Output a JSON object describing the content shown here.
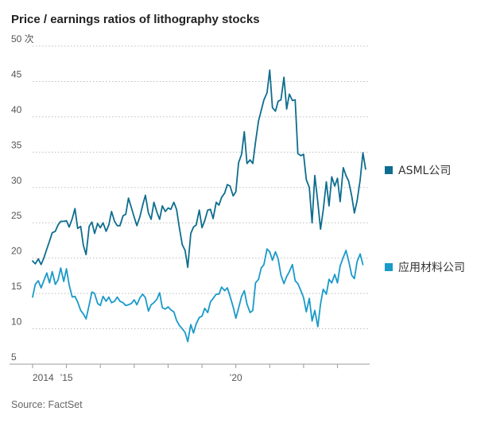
{
  "title": "Price / earnings ratios of lithography stocks",
  "source": "Source: FactSet",
  "chart_data": {
    "type": "line",
    "title": "Price / earnings ratios of lithography stocks",
    "y_unit": "次",
    "ylim": [
      5,
      50
    ],
    "y_ticks": [
      5,
      10,
      15,
      20,
      25,
      30,
      35,
      40,
      45,
      50
    ],
    "x_range": [
      2014.0,
      2023.95
    ],
    "x_ticks": [
      {
        "x": 2014,
        "label": "2014"
      },
      {
        "x": 2015,
        "label": "’15"
      },
      {
        "x": 2016,
        "label": ""
      },
      {
        "x": 2017,
        "label": ""
      },
      {
        "x": 2018,
        "label": ""
      },
      {
        "x": 2019,
        "label": ""
      },
      {
        "x": 2020,
        "label": "’20"
      },
      {
        "x": 2021,
        "label": ""
      },
      {
        "x": 2022,
        "label": ""
      },
      {
        "x": 2023,
        "label": ""
      }
    ],
    "grid": "horizontal dotted",
    "legend": "right, beside line ends",
    "series": [
      {
        "name": "ASML公司",
        "color": "#0e6d8e",
        "points": [
          [
            2014.0,
            19.6
          ],
          [
            2014.08,
            19.2
          ],
          [
            2014.17,
            19.9
          ],
          [
            2014.25,
            19.1
          ],
          [
            2014.33,
            20.0
          ],
          [
            2014.42,
            21.3
          ],
          [
            2014.5,
            22.4
          ],
          [
            2014.58,
            23.6
          ],
          [
            2014.67,
            23.8
          ],
          [
            2014.75,
            24.7
          ],
          [
            2014.83,
            25.2
          ],
          [
            2014.92,
            25.2
          ],
          [
            2015.0,
            25.3
          ],
          [
            2015.08,
            24.4
          ],
          [
            2015.17,
            25.6
          ],
          [
            2015.25,
            27.0
          ],
          [
            2015.33,
            24.2
          ],
          [
            2015.42,
            24.5
          ],
          [
            2015.5,
            21.8
          ],
          [
            2015.58,
            20.5
          ],
          [
            2015.67,
            24.5
          ],
          [
            2015.75,
            25.1
          ],
          [
            2015.83,
            23.5
          ],
          [
            2015.92,
            24.9
          ],
          [
            2016.0,
            24.3
          ],
          [
            2016.08,
            25.0
          ],
          [
            2016.17,
            23.8
          ],
          [
            2016.25,
            24.7
          ],
          [
            2016.33,
            26.6
          ],
          [
            2016.42,
            25.2
          ],
          [
            2016.5,
            24.6
          ],
          [
            2016.58,
            24.6
          ],
          [
            2016.67,
            26.0
          ],
          [
            2016.75,
            26.2
          ],
          [
            2016.83,
            28.5
          ],
          [
            2016.92,
            27.1
          ],
          [
            2017.0,
            25.8
          ],
          [
            2017.08,
            24.6
          ],
          [
            2017.17,
            25.9
          ],
          [
            2017.25,
            27.5
          ],
          [
            2017.33,
            28.9
          ],
          [
            2017.42,
            26.4
          ],
          [
            2017.5,
            25.5
          ],
          [
            2017.58,
            27.9
          ],
          [
            2017.67,
            26.5
          ],
          [
            2017.75,
            25.5
          ],
          [
            2017.83,
            27.4
          ],
          [
            2017.92,
            26.6
          ],
          [
            2018.0,
            27.1
          ],
          [
            2018.08,
            26.9
          ],
          [
            2018.17,
            27.9
          ],
          [
            2018.25,
            26.9
          ],
          [
            2018.33,
            24.4
          ],
          [
            2018.42,
            21.9
          ],
          [
            2018.5,
            21.1
          ],
          [
            2018.58,
            18.7
          ],
          [
            2018.67,
            23.5
          ],
          [
            2018.75,
            24.4
          ],
          [
            2018.83,
            24.7
          ],
          [
            2018.92,
            26.8
          ],
          [
            2019.0,
            24.3
          ],
          [
            2019.08,
            25.3
          ],
          [
            2019.17,
            26.8
          ],
          [
            2019.25,
            26.9
          ],
          [
            2019.33,
            25.6
          ],
          [
            2019.42,
            27.9
          ],
          [
            2019.5,
            27.5
          ],
          [
            2019.58,
            28.6
          ],
          [
            2019.67,
            29.2
          ],
          [
            2019.75,
            30.4
          ],
          [
            2019.83,
            30.2
          ],
          [
            2019.92,
            28.8
          ],
          [
            2020.0,
            29.4
          ],
          [
            2020.08,
            33.5
          ],
          [
            2020.17,
            34.7
          ],
          [
            2020.25,
            37.9
          ],
          [
            2020.33,
            33.4
          ],
          [
            2020.42,
            33.9
          ],
          [
            2020.5,
            33.4
          ],
          [
            2020.58,
            36.4
          ],
          [
            2020.67,
            39.4
          ],
          [
            2020.75,
            40.9
          ],
          [
            2020.83,
            42.4
          ],
          [
            2020.92,
            43.4
          ],
          [
            2021.0,
            46.6
          ],
          [
            2021.08,
            41.3
          ],
          [
            2021.17,
            40.8
          ],
          [
            2021.25,
            42.2
          ],
          [
            2021.33,
            42.4
          ],
          [
            2021.42,
            45.6
          ],
          [
            2021.5,
            41.1
          ],
          [
            2021.58,
            43.2
          ],
          [
            2021.67,
            42.3
          ],
          [
            2021.75,
            42.4
          ],
          [
            2021.83,
            34.8
          ],
          [
            2021.92,
            34.5
          ],
          [
            2022.0,
            34.7
          ],
          [
            2022.08,
            31.1
          ],
          [
            2022.17,
            30.0
          ],
          [
            2022.25,
            25.0
          ],
          [
            2022.33,
            31.7
          ],
          [
            2022.42,
            27.9
          ],
          [
            2022.5,
            24.1
          ],
          [
            2022.58,
            26.8
          ],
          [
            2022.67,
            30.8
          ],
          [
            2022.75,
            27.4
          ],
          [
            2022.83,
            31.5
          ],
          [
            2022.92,
            30.2
          ],
          [
            2023.0,
            31.3
          ],
          [
            2023.08,
            28.0
          ],
          [
            2023.17,
            32.8
          ],
          [
            2023.25,
            31.7
          ],
          [
            2023.33,
            30.9
          ],
          [
            2023.42,
            28.8
          ],
          [
            2023.5,
            26.4
          ],
          [
            2023.58,
            28.1
          ],
          [
            2023.67,
            31.1
          ],
          [
            2023.75,
            34.9
          ],
          [
            2023.83,
            32.6
          ]
        ]
      },
      {
        "name": "应用材料公司",
        "color": "#1a9ac9",
        "points": [
          [
            2014.0,
            14.5
          ],
          [
            2014.08,
            16.3
          ],
          [
            2014.17,
            16.8
          ],
          [
            2014.25,
            15.8
          ],
          [
            2014.33,
            16.8
          ],
          [
            2014.42,
            17.9
          ],
          [
            2014.5,
            16.5
          ],
          [
            2014.58,
            18.1
          ],
          [
            2014.67,
            16.3
          ],
          [
            2014.75,
            16.9
          ],
          [
            2014.83,
            18.6
          ],
          [
            2014.92,
            16.7
          ],
          [
            2015.0,
            18.5
          ],
          [
            2015.08,
            16.2
          ],
          [
            2015.17,
            14.5
          ],
          [
            2015.25,
            14.6
          ],
          [
            2015.33,
            13.8
          ],
          [
            2015.42,
            12.6
          ],
          [
            2015.5,
            12.1
          ],
          [
            2015.58,
            11.4
          ],
          [
            2015.67,
            13.4
          ],
          [
            2015.75,
            15.2
          ],
          [
            2015.83,
            15.0
          ],
          [
            2015.92,
            13.6
          ],
          [
            2016.0,
            13.3
          ],
          [
            2016.08,
            14.6
          ],
          [
            2016.17,
            13.9
          ],
          [
            2016.25,
            14.5
          ],
          [
            2016.33,
            13.7
          ],
          [
            2016.42,
            13.9
          ],
          [
            2016.5,
            14.5
          ],
          [
            2016.58,
            13.9
          ],
          [
            2016.67,
            13.7
          ],
          [
            2016.75,
            13.3
          ],
          [
            2016.83,
            13.4
          ],
          [
            2016.92,
            13.6
          ],
          [
            2017.0,
            14.1
          ],
          [
            2017.08,
            13.4
          ],
          [
            2017.17,
            14.4
          ],
          [
            2017.25,
            14.9
          ],
          [
            2017.33,
            14.4
          ],
          [
            2017.42,
            12.5
          ],
          [
            2017.5,
            13.4
          ],
          [
            2017.58,
            13.7
          ],
          [
            2017.67,
            14.2
          ],
          [
            2017.75,
            15.1
          ],
          [
            2017.83,
            13.0
          ],
          [
            2017.92,
            12.8
          ],
          [
            2018.0,
            13.1
          ],
          [
            2018.08,
            12.7
          ],
          [
            2018.17,
            12.4
          ],
          [
            2018.25,
            11.2
          ],
          [
            2018.33,
            10.5
          ],
          [
            2018.42,
            10.0
          ],
          [
            2018.5,
            9.5
          ],
          [
            2018.58,
            8.2
          ],
          [
            2018.67,
            10.6
          ],
          [
            2018.75,
            9.4
          ],
          [
            2018.83,
            10.7
          ],
          [
            2018.92,
            11.6
          ],
          [
            2019.0,
            11.8
          ],
          [
            2019.08,
            12.9
          ],
          [
            2019.17,
            12.3
          ],
          [
            2019.25,
            13.8
          ],
          [
            2019.33,
            14.3
          ],
          [
            2019.42,
            14.9
          ],
          [
            2019.5,
            14.9
          ],
          [
            2019.58,
            15.9
          ],
          [
            2019.67,
            15.4
          ],
          [
            2019.75,
            15.8
          ],
          [
            2019.83,
            14.6
          ],
          [
            2019.92,
            13.1
          ],
          [
            2020.0,
            11.5
          ],
          [
            2020.08,
            12.9
          ],
          [
            2020.17,
            14.6
          ],
          [
            2020.25,
            15.4
          ],
          [
            2020.33,
            13.5
          ],
          [
            2020.42,
            12.3
          ],
          [
            2020.5,
            12.6
          ],
          [
            2020.58,
            16.5
          ],
          [
            2020.67,
            17.0
          ],
          [
            2020.75,
            18.6
          ],
          [
            2020.83,
            19.1
          ],
          [
            2020.92,
            21.3
          ],
          [
            2021.0,
            20.9
          ],
          [
            2021.08,
            19.7
          ],
          [
            2021.17,
            20.9
          ],
          [
            2021.25,
            19.9
          ],
          [
            2021.33,
            17.6
          ],
          [
            2021.42,
            16.4
          ],
          [
            2021.5,
            17.4
          ],
          [
            2021.58,
            18.1
          ],
          [
            2021.67,
            19.1
          ],
          [
            2021.75,
            16.8
          ],
          [
            2021.83,
            16.4
          ],
          [
            2021.92,
            15.4
          ],
          [
            2022.0,
            14.4
          ],
          [
            2022.08,
            12.4
          ],
          [
            2022.17,
            14.3
          ],
          [
            2022.25,
            11.1
          ],
          [
            2022.33,
            12.6
          ],
          [
            2022.42,
            10.3
          ],
          [
            2022.5,
            13.5
          ],
          [
            2022.58,
            15.6
          ],
          [
            2022.67,
            14.9
          ],
          [
            2022.75,
            17.0
          ],
          [
            2022.83,
            16.5
          ],
          [
            2022.92,
            17.7
          ],
          [
            2023.0,
            16.5
          ],
          [
            2023.08,
            18.9
          ],
          [
            2023.17,
            20.1
          ],
          [
            2023.25,
            21.1
          ],
          [
            2023.33,
            19.6
          ],
          [
            2023.42,
            17.6
          ],
          [
            2023.5,
            17.1
          ],
          [
            2023.58,
            19.5
          ],
          [
            2023.67,
            20.6
          ],
          [
            2023.75,
            19.1
          ]
        ]
      }
    ]
  }
}
